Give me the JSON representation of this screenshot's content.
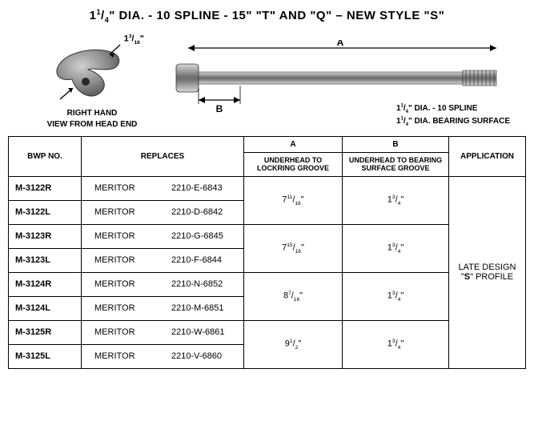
{
  "title_html": "1<sup>1</sup>/<sub>4</sub>\" DIA. - 10 SPLINE - 15\" \"T\" AND \"Q\" – NEW STYLE \"<b>S</b>\"",
  "head": {
    "dim_html": "1<sup>3</sup>/<sub>16</sub>\"",
    "caption1": "RIGHT HAND",
    "caption2": "VIEW FROM HEAD END"
  },
  "shaft": {
    "labelA": "A",
    "labelB": "B",
    "spec1_html": "1<sup>1</sup>/<sub>4</sub>\" DIA. - 10 SPLINE",
    "spec2_html": "1<sup>1</sup>/<sub>4</sub>\" DIA. BEARING SURFACE"
  },
  "headers": {
    "bwp": "BWP NO.",
    "replaces": "REPLACES",
    "a_top": "A",
    "a_sub": "UNDERHEAD TO LOCKRING GROOVE",
    "b_top": "B",
    "b_sub": "UNDERHEAD TO BEARING SURFACE GROOVE",
    "application": "APPLICATION"
  },
  "brand": "MERITOR",
  "rows": [
    {
      "bwp": "M-3122R",
      "part": "2210-E-6843"
    },
    {
      "bwp": "M-3122L",
      "part": "2210-D-6842"
    },
    {
      "bwp": "M-3123R",
      "part": "2210-G-6845"
    },
    {
      "bwp": "M-3123L",
      "part": "2210-F-6844"
    },
    {
      "bwp": "M-3124R",
      "part": "2210-N-6852"
    },
    {
      "bwp": "M-3124L",
      "part": "2210-M-6851"
    },
    {
      "bwp": "M-3125R",
      "part": "2210-W-6861"
    },
    {
      "bwp": "M-3125L",
      "part": "2210-V-6860"
    }
  ],
  "dimA": [
    "7<sup>11</sup>/<sub>16</sub>\"",
    "7<sup>15</sup>/<sub>16</sub>\"",
    "8<sup>7</sup>/<sub>16</sub>\"",
    "9<sup>1</sup>/<sub>2</sub>\""
  ],
  "dimB": [
    "1<sup>3</sup>/<sub>4</sub>\"",
    "1<sup>3</sup>/<sub>4</sub>\"",
    "1<sup>3</sup>/<sub>4</sub>\"",
    "1<sup>3</sup>/<sub>4</sub>\""
  ],
  "application_html": "LATE DESIGN \"<b>S</b>\" PROFILE",
  "svg_colors": {
    "metal_light": "#b8b8b8",
    "metal_mid": "#8a8a8a",
    "metal_dark": "#555555",
    "stroke": "#000000"
  }
}
